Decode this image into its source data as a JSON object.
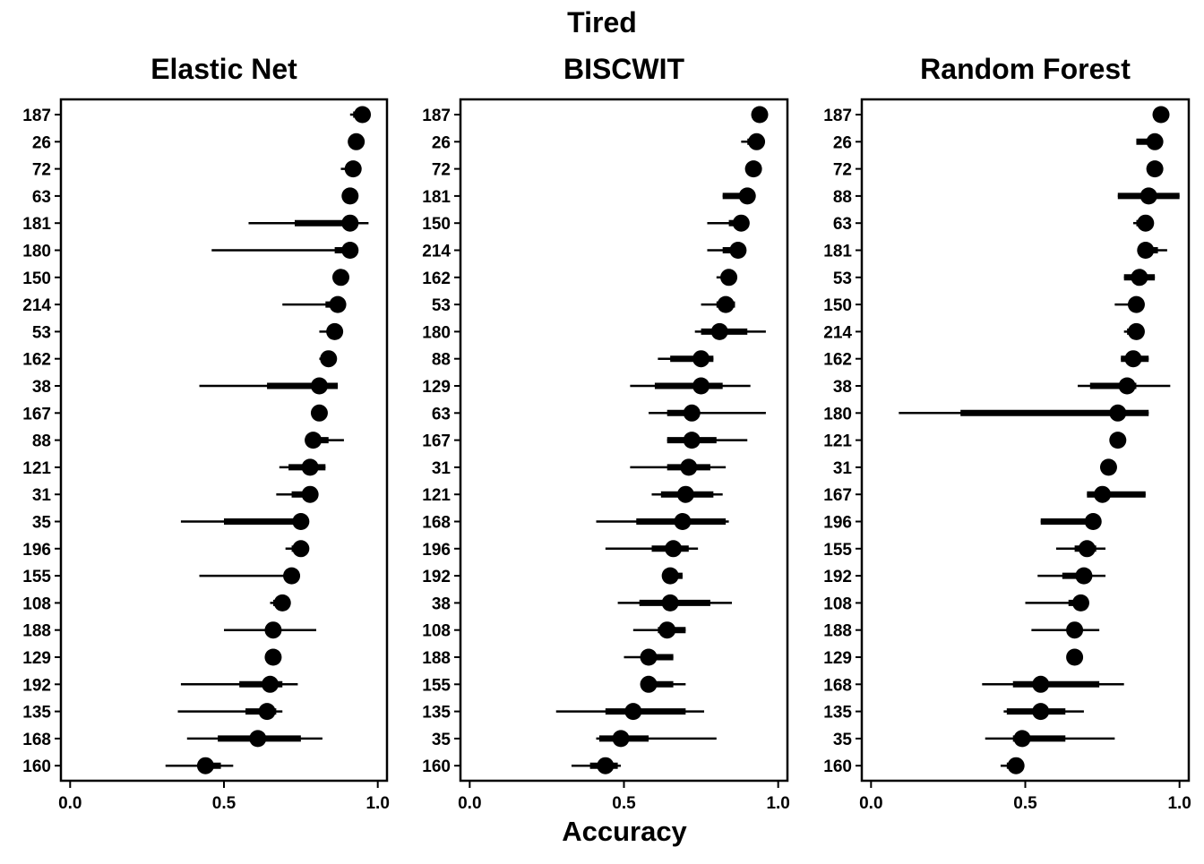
{
  "chart_data": {
    "type": "forest",
    "title": "Tired",
    "xlabel": "Accuracy",
    "xlim": [
      -0.03,
      1.03
    ],
    "xticks": [
      0.0,
      0.5,
      1.0
    ],
    "xtick_labels": [
      "0.0",
      "0.5",
      "1.0"
    ],
    "grid": false,
    "panels": [
      {
        "title": "Elastic Net",
        "rows": [
          {
            "id": "187",
            "est": 0.95,
            "lo66": 0.92,
            "hi66": 0.95,
            "lo95": 0.91,
            "hi95": 0.95
          },
          {
            "id": "26",
            "est": 0.93,
            "lo66": 0.92,
            "hi66": 0.94,
            "lo95": 0.92,
            "hi95": 0.94
          },
          {
            "id": "72",
            "est": 0.92,
            "lo66": 0.9,
            "hi66": 0.93,
            "lo95": 0.88,
            "hi95": 0.93
          },
          {
            "id": "63",
            "est": 0.91,
            "lo66": 0.91,
            "hi66": 0.91,
            "lo95": 0.91,
            "hi95": 0.91
          },
          {
            "id": "181",
            "est": 0.91,
            "lo66": 0.73,
            "hi66": 0.92,
            "lo95": 0.58,
            "hi95": 0.97
          },
          {
            "id": "180",
            "est": 0.91,
            "lo66": 0.86,
            "hi66": 0.92,
            "lo95": 0.46,
            "hi95": 0.92
          },
          {
            "id": "150",
            "est": 0.88,
            "lo66": 0.88,
            "hi66": 0.88,
            "lo95": 0.88,
            "hi95": 0.88
          },
          {
            "id": "214",
            "est": 0.87,
            "lo66": 0.83,
            "hi66": 0.89,
            "lo95": 0.69,
            "hi95": 0.89
          },
          {
            "id": "53",
            "est": 0.86,
            "lo66": 0.84,
            "hi66": 0.87,
            "lo95": 0.81,
            "hi95": 0.87
          },
          {
            "id": "162",
            "est": 0.84,
            "lo66": 0.83,
            "hi66": 0.85,
            "lo95": 0.81,
            "hi95": 0.85
          },
          {
            "id": "38",
            "est": 0.81,
            "lo66": 0.64,
            "hi66": 0.87,
            "lo95": 0.42,
            "hi95": 0.87
          },
          {
            "id": "167",
            "est": 0.81,
            "lo66": 0.81,
            "hi66": 0.81,
            "lo95": 0.81,
            "hi95": 0.81
          },
          {
            "id": "88",
            "est": 0.79,
            "lo66": 0.79,
            "hi66": 0.84,
            "lo95": 0.79,
            "hi95": 0.89
          },
          {
            "id": "121",
            "est": 0.78,
            "lo66": 0.71,
            "hi66": 0.83,
            "lo95": 0.68,
            "hi95": 0.83
          },
          {
            "id": "31",
            "est": 0.78,
            "lo66": 0.72,
            "hi66": 0.78,
            "lo95": 0.67,
            "hi95": 0.78
          },
          {
            "id": "35",
            "est": 0.75,
            "lo66": 0.5,
            "hi66": 0.75,
            "lo95": 0.36,
            "hi95": 0.75
          },
          {
            "id": "196",
            "est": 0.75,
            "lo66": 0.72,
            "hi66": 0.75,
            "lo95": 0.7,
            "hi95": 0.75
          },
          {
            "id": "155",
            "est": 0.72,
            "lo66": 0.72,
            "hi66": 0.72,
            "lo95": 0.42,
            "hi95": 0.72
          },
          {
            "id": "108",
            "est": 0.69,
            "lo66": 0.66,
            "hi66": 0.7,
            "lo95": 0.65,
            "hi95": 0.7
          },
          {
            "id": "188",
            "est": 0.66,
            "lo66": 0.66,
            "hi66": 0.66,
            "lo95": 0.5,
            "hi95": 0.8
          },
          {
            "id": "129",
            "est": 0.66,
            "lo66": 0.66,
            "hi66": 0.66,
            "lo95": 0.66,
            "hi95": 0.66
          },
          {
            "id": "192",
            "est": 0.65,
            "lo66": 0.55,
            "hi66": 0.69,
            "lo95": 0.36,
            "hi95": 0.74
          },
          {
            "id": "135",
            "est": 0.64,
            "lo66": 0.57,
            "hi66": 0.67,
            "lo95": 0.35,
            "hi95": 0.69
          },
          {
            "id": "168",
            "est": 0.61,
            "lo66": 0.48,
            "hi66": 0.75,
            "lo95": 0.38,
            "hi95": 0.82
          },
          {
            "id": "160",
            "est": 0.44,
            "lo66": 0.43,
            "hi66": 0.49,
            "lo95": 0.31,
            "hi95": 0.53
          }
        ]
      },
      {
        "title": "BISCWIT",
        "rows": [
          {
            "id": "187",
            "est": 0.94,
            "lo66": 0.94,
            "hi66": 0.94,
            "lo95": 0.94,
            "hi95": 0.94
          },
          {
            "id": "26",
            "est": 0.93,
            "lo66": 0.9,
            "hi66": 0.94,
            "lo95": 0.88,
            "hi95": 0.94
          },
          {
            "id": "72",
            "est": 0.92,
            "lo66": 0.92,
            "hi66": 0.92,
            "lo95": 0.92,
            "hi95": 0.92
          },
          {
            "id": "181",
            "est": 0.9,
            "lo66": 0.82,
            "hi66": 0.9,
            "lo95": 0.82,
            "hi95": 0.9
          },
          {
            "id": "150",
            "est": 0.88,
            "lo66": 0.84,
            "hi66": 0.88,
            "lo95": 0.77,
            "hi95": 0.88
          },
          {
            "id": "214",
            "est": 0.87,
            "lo66": 0.82,
            "hi66": 0.87,
            "lo95": 0.77,
            "hi95": 0.87
          },
          {
            "id": "162",
            "est": 0.84,
            "lo66": 0.82,
            "hi66": 0.84,
            "lo95": 0.8,
            "hi95": 0.84
          },
          {
            "id": "53",
            "est": 0.83,
            "lo66": 0.8,
            "hi66": 0.86,
            "lo95": 0.75,
            "hi95": 0.86
          },
          {
            "id": "180",
            "est": 0.81,
            "lo66": 0.75,
            "hi66": 0.9,
            "lo95": 0.73,
            "hi95": 0.96
          },
          {
            "id": "88",
            "est": 0.75,
            "lo66": 0.65,
            "hi66": 0.79,
            "lo95": 0.61,
            "hi95": 0.79
          },
          {
            "id": "129",
            "est": 0.75,
            "lo66": 0.6,
            "hi66": 0.82,
            "lo95": 0.52,
            "hi95": 0.91
          },
          {
            "id": "63",
            "est": 0.72,
            "lo66": 0.64,
            "hi66": 0.72,
            "lo95": 0.58,
            "hi95": 0.96
          },
          {
            "id": "167",
            "est": 0.72,
            "lo66": 0.64,
            "hi66": 0.8,
            "lo95": 0.64,
            "hi95": 0.9
          },
          {
            "id": "31",
            "est": 0.71,
            "lo66": 0.64,
            "hi66": 0.78,
            "lo95": 0.52,
            "hi95": 0.83
          },
          {
            "id": "121",
            "est": 0.7,
            "lo66": 0.62,
            "hi66": 0.79,
            "lo95": 0.59,
            "hi95": 0.82
          },
          {
            "id": "168",
            "est": 0.69,
            "lo66": 0.54,
            "hi66": 0.83,
            "lo95": 0.41,
            "hi95": 0.84
          },
          {
            "id": "196",
            "est": 0.66,
            "lo66": 0.59,
            "hi66": 0.71,
            "lo95": 0.44,
            "hi95": 0.74
          },
          {
            "id": "192",
            "est": 0.65,
            "lo66": 0.63,
            "hi66": 0.69,
            "lo95": 0.63,
            "hi95": 0.69
          },
          {
            "id": "38",
            "est": 0.65,
            "lo66": 0.55,
            "hi66": 0.78,
            "lo95": 0.48,
            "hi95": 0.85
          },
          {
            "id": "108",
            "est": 0.64,
            "lo66": 0.61,
            "hi66": 0.7,
            "lo95": 0.53,
            "hi95": 0.7
          },
          {
            "id": "188",
            "est": 0.58,
            "lo66": 0.58,
            "hi66": 0.66,
            "lo95": 0.5,
            "hi95": 0.66
          },
          {
            "id": "155",
            "est": 0.58,
            "lo66": 0.58,
            "hi66": 0.66,
            "lo95": 0.58,
            "hi95": 0.7
          },
          {
            "id": "135",
            "est": 0.53,
            "lo66": 0.44,
            "hi66": 0.7,
            "lo95": 0.28,
            "hi95": 0.76
          },
          {
            "id": "35",
            "est": 0.49,
            "lo66": 0.42,
            "hi66": 0.58,
            "lo95": 0.41,
            "hi95": 0.8
          },
          {
            "id": "160",
            "est": 0.44,
            "lo66": 0.39,
            "hi66": 0.48,
            "lo95": 0.33,
            "hi95": 0.49
          }
        ]
      },
      {
        "title": "Random Forest",
        "rows": [
          {
            "id": "187",
            "est": 0.94,
            "lo66": 0.94,
            "hi66": 0.94,
            "lo95": 0.94,
            "hi95": 0.94
          },
          {
            "id": "26",
            "est": 0.92,
            "lo66": 0.86,
            "hi66": 0.92,
            "lo95": 0.86,
            "hi95": 0.92
          },
          {
            "id": "72",
            "est": 0.92,
            "lo66": 0.92,
            "hi66": 0.92,
            "lo95": 0.92,
            "hi95": 0.92
          },
          {
            "id": "88",
            "est": 0.9,
            "lo66": 0.8,
            "hi66": 1.0,
            "lo95": 0.8,
            "hi95": 1.0
          },
          {
            "id": "63",
            "est": 0.89,
            "lo66": 0.86,
            "hi66": 0.89,
            "lo95": 0.85,
            "hi95": 0.89
          },
          {
            "id": "181",
            "est": 0.89,
            "lo66": 0.89,
            "hi66": 0.93,
            "lo95": 0.89,
            "hi95": 0.96
          },
          {
            "id": "53",
            "est": 0.87,
            "lo66": 0.82,
            "hi66": 0.92,
            "lo95": 0.82,
            "hi95": 0.92
          },
          {
            "id": "150",
            "est": 0.86,
            "lo66": 0.86,
            "hi66": 0.86,
            "lo95": 0.79,
            "hi95": 0.86
          },
          {
            "id": "214",
            "est": 0.86,
            "lo66": 0.83,
            "hi66": 0.86,
            "lo95": 0.82,
            "hi95": 0.86
          },
          {
            "id": "162",
            "est": 0.85,
            "lo66": 0.81,
            "hi66": 0.9,
            "lo95": 0.81,
            "hi95": 0.9
          },
          {
            "id": "38",
            "est": 0.83,
            "lo66": 0.71,
            "hi66": 0.86,
            "lo95": 0.67,
            "hi95": 0.97
          },
          {
            "id": "180",
            "est": 0.8,
            "lo66": 0.29,
            "hi66": 0.9,
            "lo95": 0.09,
            "hi95": 0.9
          },
          {
            "id": "121",
            "est": 0.8,
            "lo66": 0.8,
            "hi66": 0.8,
            "lo95": 0.8,
            "hi95": 0.8
          },
          {
            "id": "31",
            "est": 0.77,
            "lo66": 0.77,
            "hi66": 0.77,
            "lo95": 0.77,
            "hi95": 0.77
          },
          {
            "id": "167",
            "est": 0.75,
            "lo66": 0.7,
            "hi66": 0.89,
            "lo95": 0.7,
            "hi95": 0.89
          },
          {
            "id": "196",
            "est": 0.72,
            "lo66": 0.55,
            "hi66": 0.72,
            "lo95": 0.55,
            "hi95": 0.72
          },
          {
            "id": "155",
            "est": 0.7,
            "lo66": 0.66,
            "hi66": 0.73,
            "lo95": 0.6,
            "hi95": 0.76
          },
          {
            "id": "192",
            "est": 0.69,
            "lo66": 0.62,
            "hi66": 0.7,
            "lo95": 0.54,
            "hi95": 0.76
          },
          {
            "id": "108",
            "est": 0.68,
            "lo66": 0.64,
            "hi66": 0.68,
            "lo95": 0.5,
            "hi95": 0.68
          },
          {
            "id": "188",
            "est": 0.66,
            "lo66": 0.64,
            "hi66": 0.68,
            "lo95": 0.52,
            "hi95": 0.74
          },
          {
            "id": "129",
            "est": 0.66,
            "lo66": 0.66,
            "hi66": 0.66,
            "lo95": 0.66,
            "hi95": 0.66
          },
          {
            "id": "168",
            "est": 0.55,
            "lo66": 0.46,
            "hi66": 0.74,
            "lo95": 0.36,
            "hi95": 0.82
          },
          {
            "id": "135",
            "est": 0.55,
            "lo66": 0.44,
            "hi66": 0.63,
            "lo95": 0.43,
            "hi95": 0.69
          },
          {
            "id": "35",
            "est": 0.49,
            "lo66": 0.46,
            "hi66": 0.63,
            "lo95": 0.37,
            "hi95": 0.79
          },
          {
            "id": "160",
            "est": 0.47,
            "lo66": 0.44,
            "hi66": 0.48,
            "lo95": 0.42,
            "hi95": 0.48
          }
        ]
      }
    ]
  }
}
